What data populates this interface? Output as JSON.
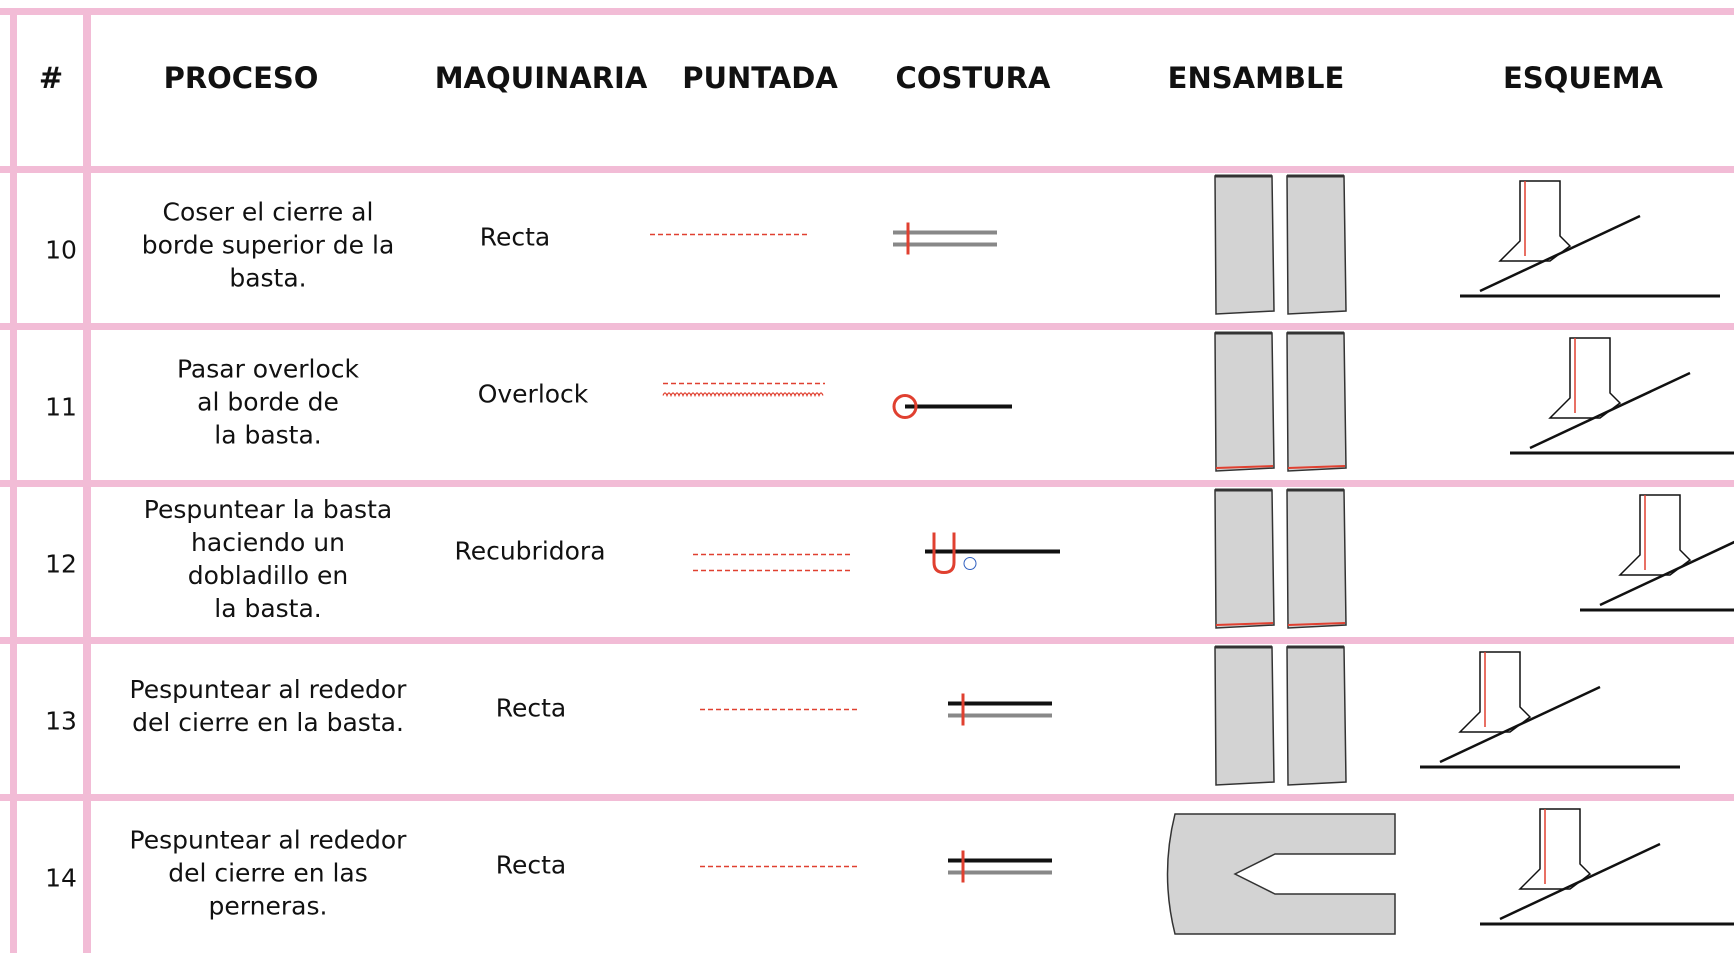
{
  "header": {
    "columns": [
      "#",
      "PROCESO",
      "MAQUINARIA",
      "PUNTADA",
      "COSTURA",
      "ENSAMBLE",
      "ESQUEMA"
    ]
  },
  "table": {
    "rows": [
      {
        "number": "10",
        "proceso": [
          "Coser el cierre al",
          "borde superior de la",
          "basta."
        ],
        "maquinaria": "Recta"
      },
      {
        "number": "11",
        "proceso": [
          "Pasar overlock",
          "al borde de",
          "la basta."
        ],
        "maquinaria": "Overlock"
      },
      {
        "number": "12",
        "proceso": [
          "Pespuntear la basta",
          "haciendo un",
          "dobladillo en",
          "la basta."
        ],
        "maquinaria": "Recubridora"
      },
      {
        "number": "13",
        "proceso": [
          "Pespuntear al rededor",
          "del cierre en la basta."
        ],
        "maquinaria": "Recta"
      },
      {
        "number": "14",
        "proceso": [
          "Pespuntear al rededor",
          "del cierre en las",
          "perneras."
        ],
        "maquinaria": "Recta"
      }
    ]
  }
}
